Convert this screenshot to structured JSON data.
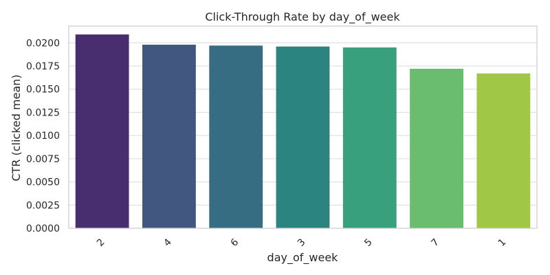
{
  "chart_data": {
    "type": "bar",
    "title": "Click-Through Rate by day_of_week",
    "xlabel": "day_of_week",
    "ylabel": "CTR (clicked mean)",
    "categories": [
      "2",
      "4",
      "6",
      "3",
      "5",
      "7",
      "1"
    ],
    "values": [
      0.0209,
      0.0198,
      0.0197,
      0.0196,
      0.0195,
      0.0172,
      0.0167
    ],
    "ylim": [
      0,
      0.0218
    ],
    "yticks": [
      "0.0000",
      "0.0025",
      "0.0050",
      "0.0075",
      "0.0100",
      "0.0125",
      "0.0150",
      "0.0175",
      "0.0200"
    ],
    "ytick_values": [
      0,
      0.0025,
      0.005,
      0.0075,
      0.01,
      0.0125,
      0.015,
      0.0175,
      0.02
    ],
    "grid": true,
    "colors": [
      "#482d6f",
      "#41577f",
      "#366d82",
      "#2c8480",
      "#38a07c",
      "#6abd6e",
      "#a0c846"
    ]
  }
}
